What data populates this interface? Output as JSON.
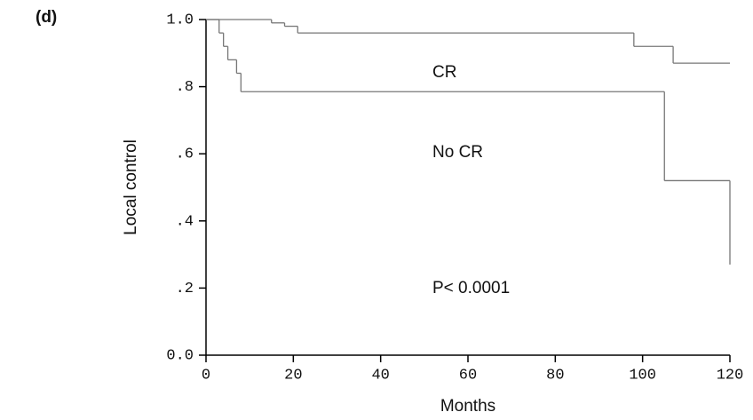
{
  "chart_data": {
    "type": "step",
    "panel_label": "(d)",
    "xlabel": "Months",
    "ylabel": "Local control",
    "xlim": [
      0,
      120
    ],
    "ylim": [
      0,
      1
    ],
    "xticks": [
      0,
      20,
      40,
      60,
      80,
      100,
      120
    ],
    "yticks": [
      {
        "value": 0,
        "label": "0.0"
      },
      {
        "value": 0.2,
        "label": ".2"
      },
      {
        "value": 0.4,
        "label": ".4"
      },
      {
        "value": 0.6,
        "label": ".6"
      },
      {
        "value": 0.8,
        "label": ".8"
      },
      {
        "value": 1,
        "label": "1.0"
      }
    ],
    "series": [
      {
        "name": "CR",
        "color": "#777777",
        "x": [
          0,
          15,
          18,
          21,
          98,
          107,
          120
        ],
        "values": [
          1,
          0.99,
          0.98,
          0.96,
          0.92,
          0.87,
          0.87
        ]
      },
      {
        "name": "No CR",
        "color": "#777777",
        "x": [
          0,
          3,
          4,
          5,
          7,
          8,
          105,
          120
        ],
        "values": [
          1,
          0.96,
          0.92,
          0.88,
          0.84,
          0.785,
          0.52,
          0.27
        ]
      }
    ],
    "annotation": "P< 0.0001"
  }
}
